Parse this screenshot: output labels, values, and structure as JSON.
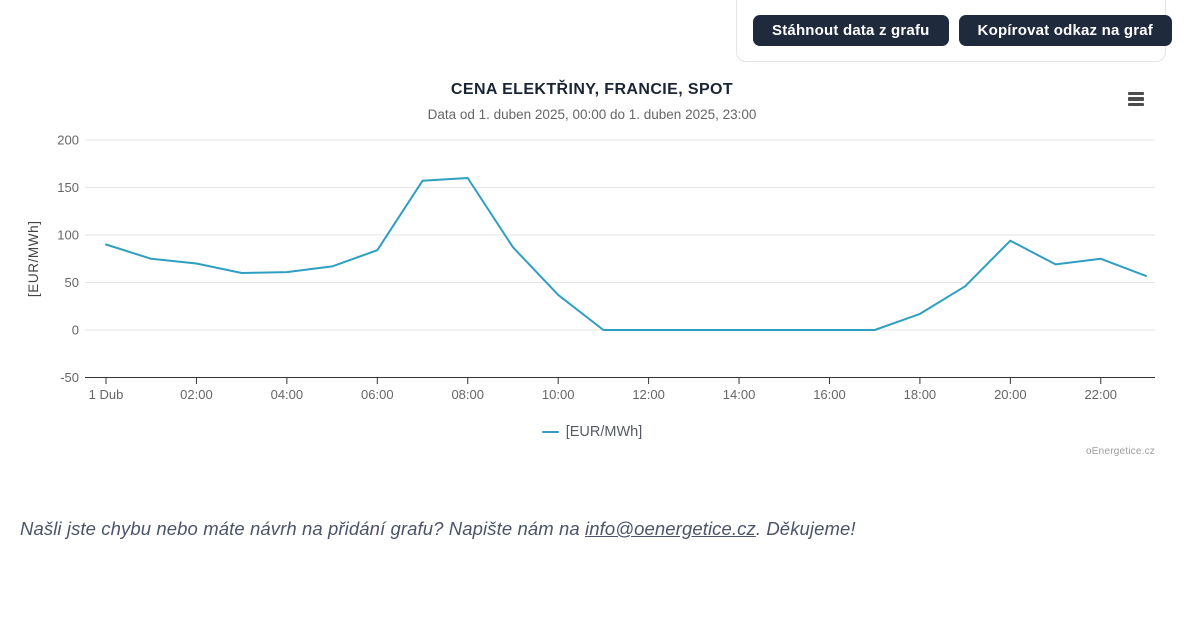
{
  "actions": {
    "download_button": "Stáhnout data z grafu",
    "copy_link_button": "Kopírovat odkaz na graf"
  },
  "colors": {
    "button_bg": "#1f2b3d",
    "button_text": "#ffffff",
    "series_line": "#2f9fc1",
    "title_text": "#1b2434",
    "axis_text": "#666666",
    "grid_line": "#e6e6e6",
    "axis_line": "#333333"
  },
  "chart_data": {
    "type": "line",
    "title": "CENA ELEKTŘINY, FRANCIE, SPOT",
    "subtitle": "Data od 1. duben 2025, 00:00 do 1. duben 2025, 23:00",
    "xlabel": "",
    "ylabel": "[EUR/MWh]",
    "ylim": [
      -50,
      200
    ],
    "yticks": [
      200,
      150,
      100,
      50,
      0,
      -50
    ],
    "xtick_labels": [
      "1 Dub",
      "02:00",
      "04:00",
      "06:00",
      "08:00",
      "10:00",
      "12:00",
      "14:00",
      "16:00",
      "18:00",
      "20:00",
      "22:00"
    ],
    "grid": true,
    "legend_position": "bottom-center",
    "x": [
      "00:00",
      "01:00",
      "02:00",
      "03:00",
      "04:00",
      "05:00",
      "06:00",
      "07:00",
      "08:00",
      "09:00",
      "10:00",
      "11:00",
      "12:00",
      "13:00",
      "14:00",
      "15:00",
      "16:00",
      "17:00",
      "18:00",
      "19:00",
      "20:00",
      "21:00",
      "22:00",
      "23:00"
    ],
    "series": [
      {
        "name": "[EUR/MWh]",
        "color": "#2f9fc1",
        "values": [
          90,
          75,
          70,
          60,
          61,
          67,
          84,
          157,
          160,
          87,
          37,
          0,
          0,
          0,
          0,
          0,
          0,
          0,
          17,
          46,
          94,
          69,
          75,
          57
        ]
      }
    ],
    "watermark": "oEnergetice.cz"
  },
  "footer": {
    "text_before": "Našli jste chybu nebo máte návrh na přidání grafu? Napište nám na ",
    "link": "info@oenergetice.cz",
    "text_after": ". Děkujeme!"
  }
}
